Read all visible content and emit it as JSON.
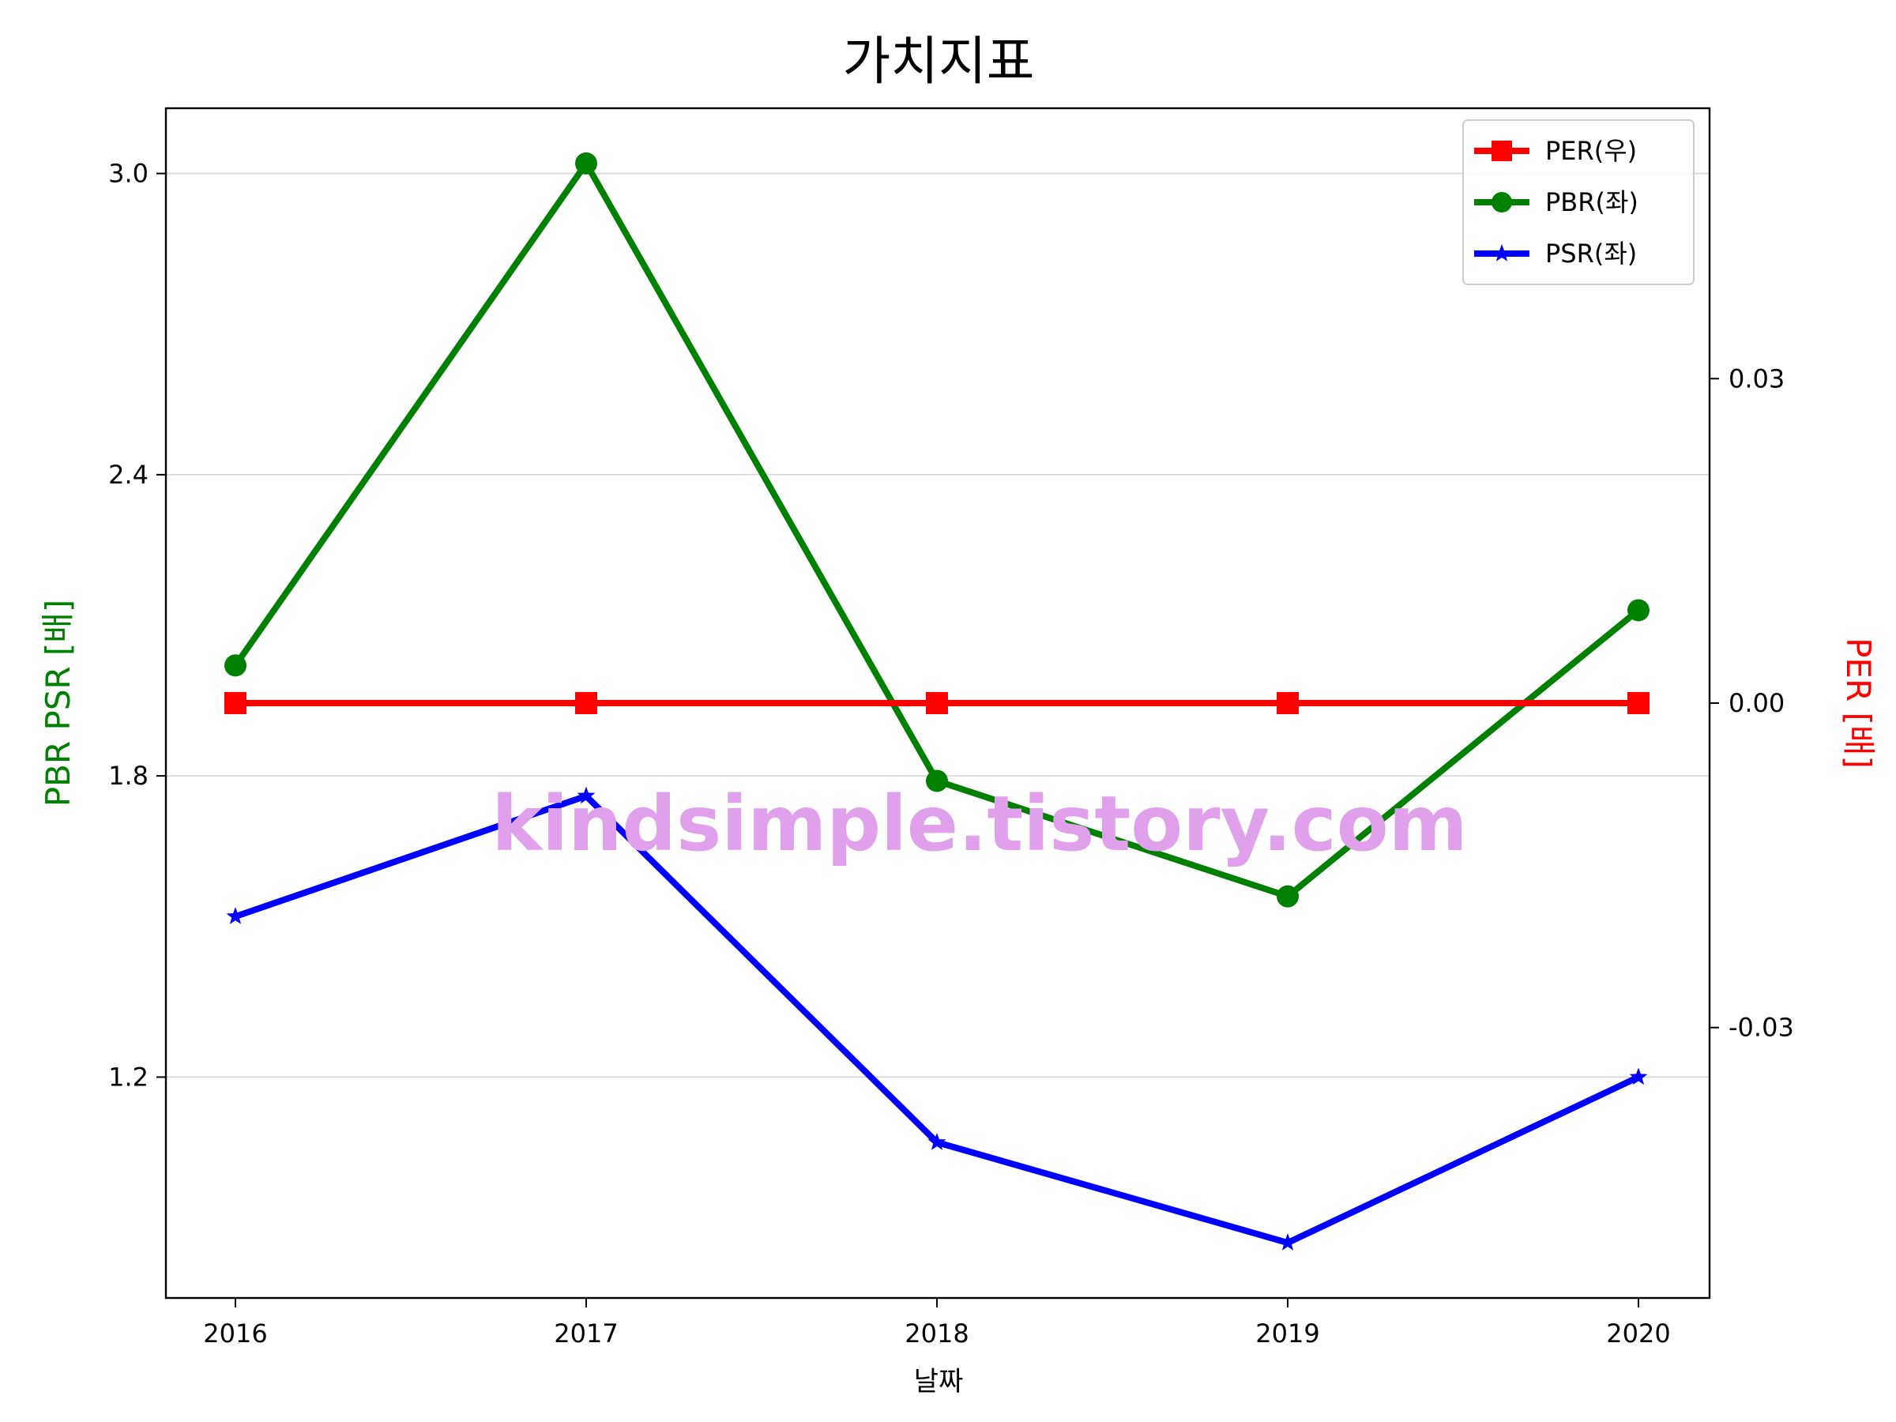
{
  "chart_data": {
    "type": "line",
    "title": "가치지표",
    "xlabel": "날짜",
    "ylabel_left": "PBR PSR [배]",
    "ylabel_right": "PER [배]",
    "categories": [
      "2016",
      "2017",
      "2018",
      "2019",
      "2020"
    ],
    "y_left": {
      "ticks": [
        1.2,
        1.8,
        2.4,
        3.0
      ],
      "tick_labels": [
        "1.2",
        "1.8",
        "2.4",
        "3.0"
      ],
      "ylim": [
        0.76,
        3.13
      ]
    },
    "y_right": {
      "ticks": [
        -0.03,
        0.0,
        0.03
      ],
      "tick_labels": [
        "-0.03",
        "0.00",
        "0.03"
      ],
      "ylim": [
        -0.055,
        0.055
      ]
    },
    "grid": "horizontal-left-axis",
    "legend_position": "top-right",
    "series": [
      {
        "name": "PER(우)",
        "axis": "right",
        "color": "#ff0000",
        "marker": "square",
        "values": [
          0,
          0,
          0,
          0,
          0
        ]
      },
      {
        "name": "PBR(좌)",
        "axis": "left",
        "color": "#008000",
        "marker": "circle",
        "values": [
          2.02,
          3.02,
          1.79,
          1.56,
          2.13
        ]
      },
      {
        "name": "PSR(좌)",
        "axis": "left",
        "color": "#0000ff",
        "marker": "star",
        "values": [
          1.52,
          1.76,
          1.07,
          0.87,
          1.2
        ]
      }
    ]
  },
  "watermark": "kindsimple.tistory.com",
  "colors": {
    "left_axis_label": "#008000",
    "right_axis_label": "#ff0000",
    "watermark": "#e0a0ec"
  }
}
